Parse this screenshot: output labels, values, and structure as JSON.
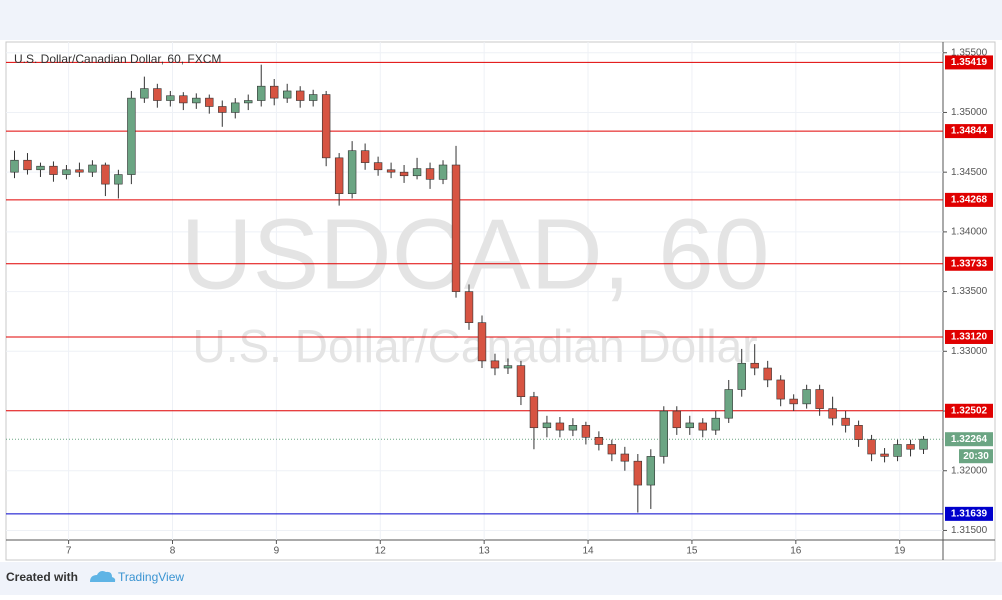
{
  "chart_data": {
    "type": "candlestick",
    "title": "U.S. Dollar/Canadian Dollar, 60, FXCM",
    "watermark": "USDCAD, 60",
    "watermark_subtitle": "U.S. Dollar/Canadian Dollar",
    "up_color": "#6ba583",
    "down_color": "#d75442",
    "grid": true,
    "xlim": [
      0,
      216
    ],
    "xticks": [
      {
        "value": 14,
        "label": "7"
      },
      {
        "value": 38,
        "label": "8"
      },
      {
        "value": 62,
        "label": "9"
      },
      {
        "value": 86,
        "label": "12"
      },
      {
        "value": 110,
        "label": "13"
      },
      {
        "value": 134,
        "label": "14"
      },
      {
        "value": 158,
        "label": "15"
      },
      {
        "value": 182,
        "label": "16"
      },
      {
        "value": 206,
        "label": "19"
      }
    ],
    "ylim": [
      1.3142,
      1.3559
    ],
    "yticks": [
      {
        "value": 1.315,
        "label": "1.31500"
      },
      {
        "value": 1.32,
        "label": "1.32000"
      },
      {
        "value": 1.325,
        "label": "1.32500"
      },
      {
        "value": 1.33,
        "label": "1.33000"
      },
      {
        "value": 1.335,
        "label": "1.33500"
      },
      {
        "value": 1.34,
        "label": "1.34000"
      },
      {
        "value": 1.345,
        "label": "1.34500"
      },
      {
        "value": 1.35,
        "label": "1.35000"
      },
      {
        "value": 1.355,
        "label": "1.35500"
      }
    ],
    "x": [
      1.5,
      4.5,
      7.5,
      10.5,
      13.5,
      16.5,
      19.5,
      22.5,
      25.5,
      28.5,
      31.5,
      34.5,
      37.5,
      40.5,
      43.5,
      46.5,
      49.5,
      52.5,
      55.5,
      58.5,
      61.5,
      64.5,
      67.5,
      70.5,
      73.5,
      76.5,
      79.5,
      82.5,
      85.5,
      88.5,
      91.5,
      94.5,
      97.5,
      100.5,
      103.5,
      106.5,
      109.5,
      112.5,
      115.5,
      118.5,
      121.5,
      124.5,
      127.5,
      130.5,
      133.5,
      136.5,
      139.5,
      142.5,
      145.5,
      148.5,
      151.5,
      154.5,
      157.5,
      160.5,
      163.5,
      166.5,
      169.5,
      172.5,
      175.5,
      178.5,
      181.5,
      184.5,
      187.5,
      190.5,
      193.5,
      196.5,
      199.5,
      202.5,
      205.5,
      208.5,
      211.5
    ],
    "ohlc": [
      [
        1.345,
        1.3468,
        1.3445,
        1.346
      ],
      [
        1.346,
        1.3466,
        1.3448,
        1.3452
      ],
      [
        1.3452,
        1.3458,
        1.3446,
        1.3455
      ],
      [
        1.3455,
        1.3459,
        1.3442,
        1.3448
      ],
      [
        1.3448,
        1.3456,
        1.3444,
        1.3452
      ],
      [
        1.3452,
        1.3458,
        1.3446,
        1.345
      ],
      [
        1.345,
        1.346,
        1.3446,
        1.3456
      ],
      [
        1.3456,
        1.3458,
        1.343,
        1.344
      ],
      [
        1.344,
        1.3452,
        1.3428,
        1.3448
      ],
      [
        1.3448,
        1.3518,
        1.344,
        1.3512
      ],
      [
        1.3512,
        1.353,
        1.3508,
        1.352
      ],
      [
        1.352,
        1.3524,
        1.3504,
        1.351
      ],
      [
        1.351,
        1.3518,
        1.3505,
        1.3514
      ],
      [
        1.3514,
        1.3517,
        1.3502,
        1.3508
      ],
      [
        1.3508,
        1.3516,
        1.3503,
        1.3512
      ],
      [
        1.3512,
        1.3515,
        1.3499,
        1.3505
      ],
      [
        1.3505,
        1.351,
        1.3488,
        1.35
      ],
      [
        1.35,
        1.3512,
        1.3495,
        1.3508
      ],
      [
        1.3508,
        1.3515,
        1.3502,
        1.351
      ],
      [
        1.351,
        1.354,
        1.3505,
        1.3522
      ],
      [
        1.3522,
        1.3528,
        1.3506,
        1.3512
      ],
      [
        1.3512,
        1.3524,
        1.3508,
        1.3518
      ],
      [
        1.3518,
        1.3522,
        1.3504,
        1.351
      ],
      [
        1.351,
        1.3519,
        1.3505,
        1.3515
      ],
      [
        1.3515,
        1.3518,
        1.3455,
        1.3462
      ],
      [
        1.3462,
        1.3466,
        1.3422,
        1.3432
      ],
      [
        1.3432,
        1.3476,
        1.3428,
        1.3468
      ],
      [
        1.3468,
        1.3474,
        1.3452,
        1.3458
      ],
      [
        1.3458,
        1.3463,
        1.3447,
        1.3452
      ],
      [
        1.3452,
        1.3458,
        1.3445,
        1.345
      ],
      [
        1.345,
        1.3456,
        1.3441,
        1.3447
      ],
      [
        1.3447,
        1.3462,
        1.3444,
        1.3453
      ],
      [
        1.3453,
        1.3458,
        1.3436,
        1.3444
      ],
      [
        1.3444,
        1.346,
        1.344,
        1.3456
      ],
      [
        1.3456,
        1.3472,
        1.3345,
        1.335
      ],
      [
        1.335,
        1.3356,
        1.3318,
        1.3324
      ],
      [
        1.3324,
        1.333,
        1.3286,
        1.3292
      ],
      [
        1.3292,
        1.3298,
        1.328,
        1.3286
      ],
      [
        1.3286,
        1.3294,
        1.3281,
        1.3288
      ],
      [
        1.3288,
        1.3292,
        1.3255,
        1.3262
      ],
      [
        1.3262,
        1.3266,
        1.3218,
        1.3236
      ],
      [
        1.3236,
        1.3246,
        1.3228,
        1.324
      ],
      [
        1.324,
        1.3245,
        1.3228,
        1.3234
      ],
      [
        1.3234,
        1.3244,
        1.3229,
        1.3238
      ],
      [
        1.3238,
        1.3241,
        1.3222,
        1.3228
      ],
      [
        1.3228,
        1.3233,
        1.3217,
        1.3222
      ],
      [
        1.3222,
        1.3226,
        1.3208,
        1.3214
      ],
      [
        1.3214,
        1.322,
        1.32,
        1.3208
      ],
      [
        1.3208,
        1.3214,
        1.3165,
        1.3188
      ],
      [
        1.3188,
        1.3218,
        1.3168,
        1.3212
      ],
      [
        1.3212,
        1.3254,
        1.3206,
        1.325
      ],
      [
        1.325,
        1.3254,
        1.323,
        1.3236
      ],
      [
        1.3236,
        1.3246,
        1.323,
        1.324
      ],
      [
        1.324,
        1.3244,
        1.3228,
        1.3234
      ],
      [
        1.3234,
        1.325,
        1.323,
        1.3244
      ],
      [
        1.3244,
        1.3276,
        1.324,
        1.3268
      ],
      [
        1.3268,
        1.3302,
        1.3262,
        1.329
      ],
      [
        1.329,
        1.3306,
        1.328,
        1.3286
      ],
      [
        1.3286,
        1.3292,
        1.327,
        1.3276
      ],
      [
        1.3276,
        1.328,
        1.3254,
        1.326
      ],
      [
        1.326,
        1.3264,
        1.325,
        1.3256
      ],
      [
        1.3256,
        1.3272,
        1.3252,
        1.3268
      ],
      [
        1.3268,
        1.3272,
        1.3246,
        1.3252
      ],
      [
        1.3252,
        1.3262,
        1.3238,
        1.3244
      ],
      [
        1.3244,
        1.325,
        1.3232,
        1.3238
      ],
      [
        1.3238,
        1.3242,
        1.322,
        1.3226
      ],
      [
        1.3226,
        1.323,
        1.3208,
        1.3214
      ],
      [
        1.3214,
        1.3219,
        1.3207,
        1.3212
      ],
      [
        1.3212,
        1.3226,
        1.3208,
        1.3222
      ],
      [
        1.3222,
        1.3226,
        1.3212,
        1.3218
      ],
      [
        1.3218,
        1.3229,
        1.3214,
        1.32264
      ]
    ],
    "levels": [
      {
        "price": 1.35419,
        "color": "#e00000"
      },
      {
        "price": 1.34844,
        "color": "#e00000"
      },
      {
        "price": 1.34268,
        "color": "#e00000"
      },
      {
        "price": 1.33733,
        "color": "#e00000"
      },
      {
        "price": {
          "value": 1.3312,
          "label": "1.33120"
        },
        "color": "#e00000"
      },
      {
        "price": 1.32502,
        "color": "#e00000"
      },
      {
        "price": 1.31639,
        "color": "#0000cc"
      }
    ],
    "last_price": 1.32264,
    "countdown": "20:30",
    "last_color": "#6ba583"
  },
  "footer": {
    "created_with": "Created with",
    "brand": "TradingView"
  }
}
